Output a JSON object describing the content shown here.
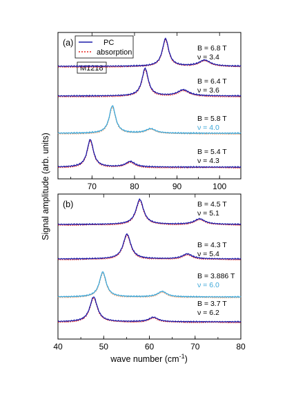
{
  "colors": {
    "pc": "#1a1aa8",
    "absorption": "#e8201a",
    "highlight": "#3aa6d8",
    "absorption_highlight": "#f0a070"
  },
  "figure": {
    "ylabel": "Signal amplitude (arb. units)",
    "xlabel": "wave number (cm",
    "xlabel_sup": "-1",
    "xlabel_end": ")",
    "sample_label": "M1218"
  },
  "legend": {
    "pc": "PC",
    "absorption": "absorption"
  },
  "chart_data": [
    {
      "type": "line",
      "panel": "(a)",
      "xlim": [
        62,
        105
      ],
      "xticks": [
        70,
        80,
        90,
        100
      ],
      "legend_placement": "top-left",
      "series": [
        {
          "B": "B = 6.8 T",
          "nu": "ν = 3.4",
          "highlight": false,
          "baseline": 0.0,
          "height": 0.95,
          "peaks": [
            {
              "x": 87.3,
              "w": 0.9,
              "a": 1.0
            },
            {
              "x": 96.5,
              "w": 1.6,
              "a": 0.22
            }
          ]
        },
        {
          "B": "B = 6.4 T",
          "nu": "ν = 3.6",
          "highlight": false,
          "baseline": 0.0,
          "height": 0.95,
          "peaks": [
            {
              "x": 82.5,
              "w": 0.9,
              "a": 1.0
            },
            {
              "x": 91.5,
              "w": 1.6,
              "a": 0.22
            }
          ]
        },
        {
          "B": "B = 5.8 T",
          "nu": "ν = 4.0",
          "highlight": true,
          "baseline": 0.0,
          "height": 0.95,
          "peaks": [
            {
              "x": 74.8,
              "w": 0.9,
              "a": 1.0
            },
            {
              "x": 83.8,
              "w": 1.4,
              "a": 0.16
            }
          ]
        },
        {
          "B": "B = 5.4 T",
          "nu": "ν = 4.3",
          "highlight": false,
          "baseline": 0.0,
          "height": 0.95,
          "peaks": [
            {
              "x": 69.6,
              "w": 0.9,
              "a": 1.0
            },
            {
              "x": 79.0,
              "w": 1.3,
              "a": 0.2
            }
          ]
        }
      ]
    },
    {
      "type": "line",
      "panel": "(b)",
      "xlim": [
        40,
        80
      ],
      "xticks": [
        40,
        50,
        60,
        70,
        80
      ],
      "series": [
        {
          "B": "B = 4.5 T",
          "nu": "ν = 5.1",
          "highlight": false,
          "baseline": 0.0,
          "height": 0.95,
          "peaks": [
            {
              "x": 57.9,
              "w": 1.0,
              "a": 1.0
            },
            {
              "x": 71.0,
              "w": 1.4,
              "a": 0.22
            }
          ]
        },
        {
          "B": "B = 4.3 T",
          "nu": "ν = 5.4",
          "highlight": false,
          "baseline": 0.0,
          "height": 0.95,
          "peaks": [
            {
              "x": 55.1,
              "w": 1.0,
              "a": 1.0
            },
            {
              "x": 68.3,
              "w": 1.3,
              "a": 0.2
            }
          ]
        },
        {
          "B": "B = 3.886 T",
          "nu": "ν = 6.0",
          "highlight": true,
          "baseline": 0.0,
          "height": 0.95,
          "peaks": [
            {
              "x": 49.8,
              "w": 0.9,
              "a": 1.0
            },
            {
              "x": 62.8,
              "w": 1.2,
              "a": 0.22
            }
          ]
        },
        {
          "B": "B = 3.7 T",
          "nu": "ν = 6.2",
          "highlight": false,
          "baseline": 0.0,
          "height": 0.95,
          "peaks": [
            {
              "x": 47.8,
              "w": 1.0,
              "a": 1.0
            },
            {
              "x": 60.9,
              "w": 1.2,
              "a": 0.18
            }
          ]
        }
      ]
    }
  ]
}
